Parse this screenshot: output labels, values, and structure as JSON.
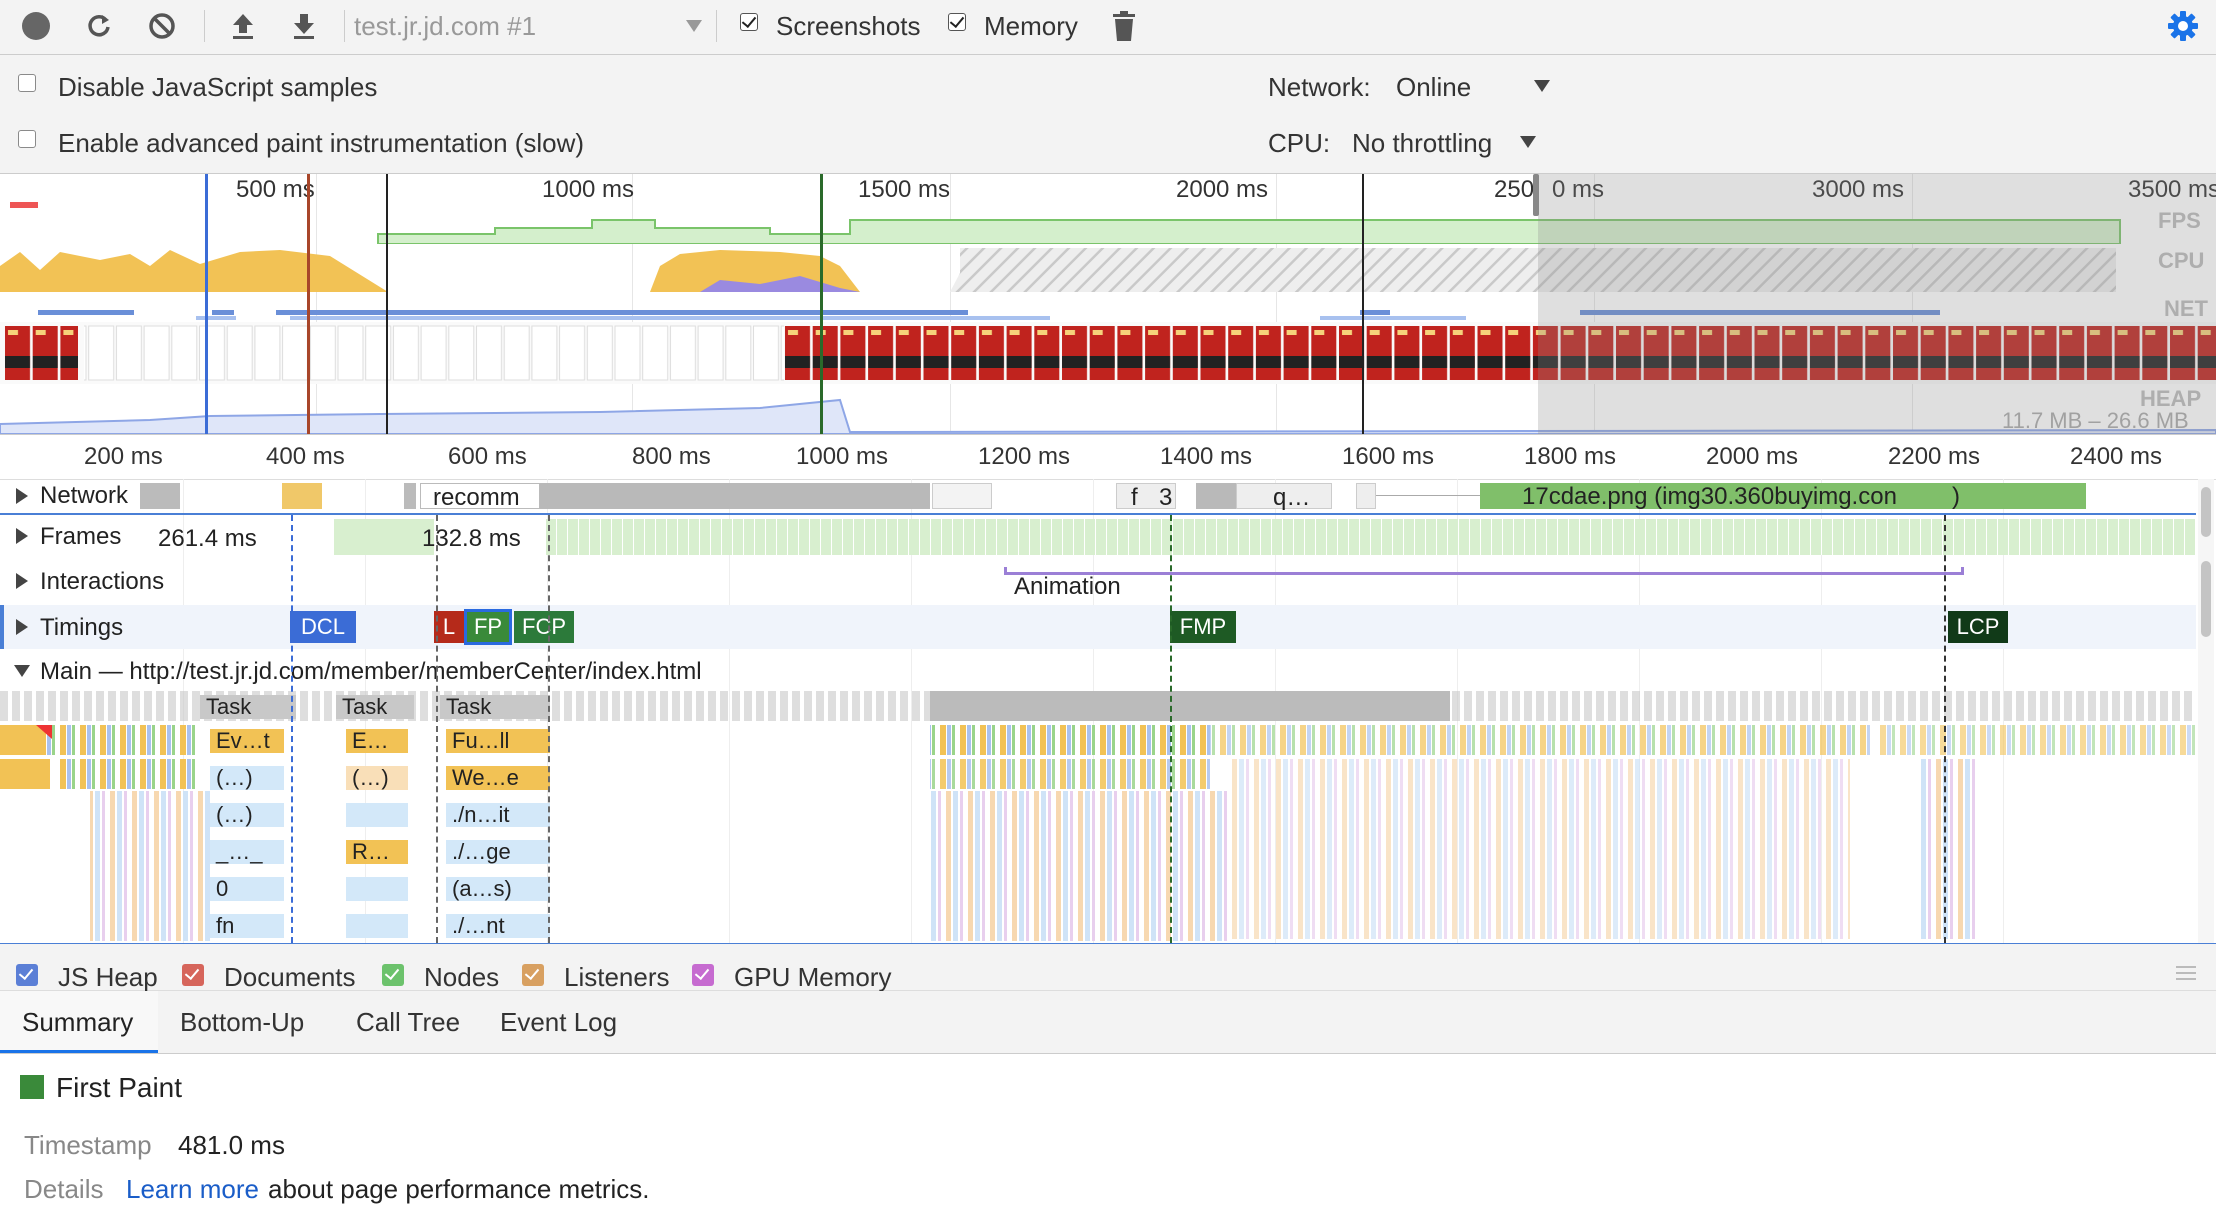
{
  "toolbar": {
    "target": "test.jr.jd.com #1",
    "screenshots_label": "Screenshots",
    "screenshots_checked": true,
    "memory_label": "Memory",
    "memory_checked": true
  },
  "settings": {
    "disable_js_samples": "Disable JavaScript samples",
    "advanced_paint": "Enable advanced paint instrumentation (slow)",
    "network_label": "Network:",
    "network_value": "Online",
    "cpu_label": "CPU:",
    "cpu_value": "No throttling"
  },
  "overview": {
    "ticks": [
      "500 ms",
      "1000 ms",
      "1500 ms",
      "2000 ms",
      "250",
      "0 ms",
      "3000 ms",
      "3500 ms"
    ],
    "fps_label": "FPS",
    "cpu_label": "CPU",
    "net_label": "NET",
    "heap_label": "HEAP",
    "heap_range": "11.7 MB – 26.6 MB"
  },
  "ruler": {
    "ticks": [
      "200 ms",
      "400 ms",
      "600 ms",
      "800 ms",
      "1000 ms",
      "1200 ms",
      "1400 ms",
      "1600 ms",
      "1800 ms",
      "2000 ms",
      "2200 ms",
      "2400 ms"
    ]
  },
  "tracks": {
    "network": "Network",
    "network_items": [
      "recomm",
      "f",
      "3",
      "q…",
      "17cdae.png (img30.360buyimg.con",
      ")"
    ],
    "frames": "Frames",
    "frame_time_1": "261.4 ms",
    "frame_time_2": "132.8 ms",
    "interactions": "Interactions",
    "animation": "Animation",
    "timings": "Timings",
    "main": "Main — http://test.jr.jd.com/member/memberCenter/index.html"
  },
  "timings_markers": [
    "DCL",
    "L",
    "FP",
    "FCP",
    "FMP",
    "LCP"
  ],
  "flame": {
    "col1": [
      "Task",
      "Ev…t",
      "(…)",
      "(…)",
      "_…_",
      "0",
      "fn"
    ],
    "col2": [
      "Task",
      "E…",
      "(…)",
      "R…"
    ],
    "col3": [
      "Task",
      "Fu…ll",
      "We…e",
      "./n…it",
      "./…ge",
      "(a…s)",
      "./…nt"
    ]
  },
  "legend": {
    "items": [
      "JS Heap",
      "Documents",
      "Nodes",
      "Listeners",
      "GPU Memory"
    ],
    "colors": [
      "#5b7fd6",
      "#d6655b",
      "#6cc26c",
      "#d8a061",
      "#c66bd0"
    ]
  },
  "tabs": [
    "Summary",
    "Bottom-Up",
    "Call Tree",
    "Event Log"
  ],
  "summary": {
    "title": "First Paint",
    "color": "#3a8a3a",
    "timestamp_label": "Timestamp",
    "timestamp_value": "481.0 ms",
    "details_label": "Details",
    "learn_more": "Learn more",
    "details_text": "about page performance metrics."
  }
}
